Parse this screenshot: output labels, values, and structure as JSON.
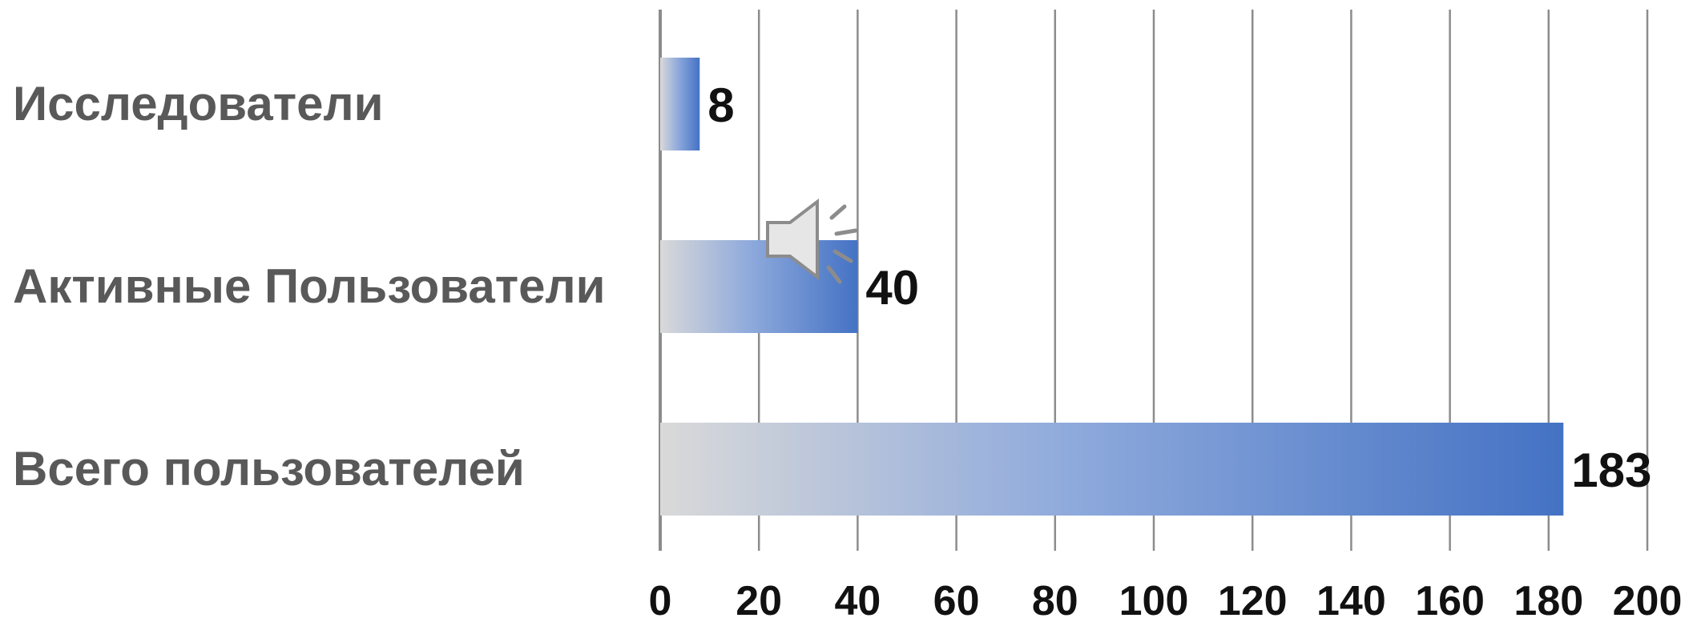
{
  "chart_data": {
    "type": "bar",
    "orientation": "horizontal",
    "categories": [
      "Исследователи",
      "Активные Пользователи",
      "Всего пользователей"
    ],
    "values": [
      8,
      40,
      183
    ],
    "data_labels": [
      "8",
      "40",
      "183"
    ],
    "xlim": [
      0,
      200
    ],
    "x_ticks": [
      0,
      20,
      40,
      60,
      80,
      100,
      120,
      140,
      160,
      180,
      200
    ],
    "x_tick_labels": [
      "0",
      "20",
      "40",
      "60",
      "80",
      "100",
      "120",
      "140",
      "160",
      "180",
      "200"
    ],
    "grid": true,
    "legend": "none",
    "colors": {
      "bar_start": "#d9d9d9",
      "bar_mid": "#8faadc",
      "bar_end": "#4472c4",
      "grid": "#8c8c8c",
      "category_text": "#595959",
      "value_text": "#111111"
    }
  },
  "overlay": {
    "icon": "speaker-icon"
  }
}
